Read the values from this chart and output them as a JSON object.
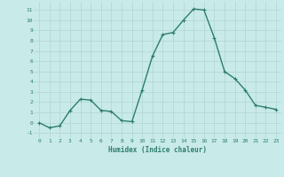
{
  "x": [
    0,
    1,
    2,
    3,
    4,
    5,
    6,
    7,
    8,
    9,
    10,
    11,
    12,
    13,
    14,
    15,
    16,
    17,
    18,
    19,
    20,
    21,
    22,
    23
  ],
  "y": [
    0,
    -0.5,
    -0.3,
    1.2,
    2.3,
    2.2,
    1.2,
    1.1,
    0.2,
    0.1,
    3.2,
    6.5,
    8.6,
    8.8,
    10.0,
    11.1,
    11.0,
    8.3,
    5.0,
    4.3,
    3.2,
    1.7,
    1.5,
    1.3
  ],
  "line_color": "#2d7d6e",
  "marker": "+",
  "marker_size": 3,
  "bg_color": "#c8eae8",
  "grid_color": "#b0d5d0",
  "xlabel": "Humidex (Indice chaleur)",
  "ylim": [
    -1.5,
    11.8
  ],
  "xlim": [
    -0.5,
    23.5
  ],
  "yticks": [
    -1,
    0,
    1,
    2,
    3,
    4,
    5,
    6,
    7,
    8,
    9,
    10,
    11
  ],
  "xticks": [
    0,
    1,
    2,
    3,
    4,
    5,
    6,
    7,
    8,
    9,
    10,
    11,
    12,
    13,
    14,
    15,
    16,
    17,
    18,
    19,
    20,
    21,
    22,
    23
  ],
  "font_color": "#2d7d6e",
  "xlabel_fontsize": 5.5,
  "tick_fontsize": 4.5,
  "linewidth": 1.0
}
